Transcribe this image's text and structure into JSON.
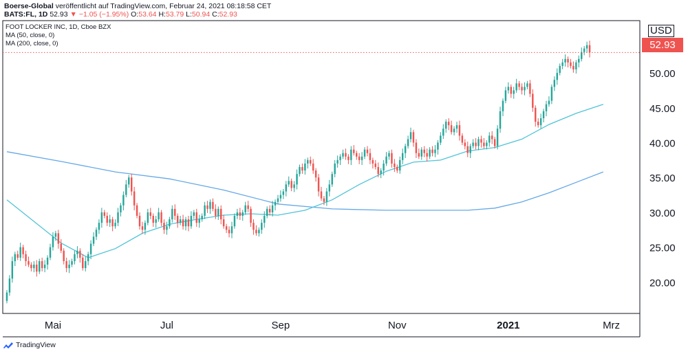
{
  "header": {
    "publisher": "Boerse-Global",
    "published_text": "veröffentlicht auf TradingView.com, Februar 24, 2021 08:18:58 CET",
    "symbol": "BATS:FL, 1D",
    "last": "52.93",
    "change": "▼ −1.05 (−1.95%)",
    "o_label": "O:",
    "o": "53.64",
    "h_label": "H:",
    "h": "53.79",
    "l_label": "L:",
    "l": "50.94",
    "c_label": "C:",
    "c": "52.93"
  },
  "legend": {
    "instrument": "FOOT LOCKER INC, 1D, Cboe BZX",
    "ma50": "MA (50, close, 0)",
    "ma200": "MA (200, close, 0)"
  },
  "price_scale": {
    "currency": "USD",
    "last_price_label": "52.93",
    "last_price": 52.93
  },
  "footer": {
    "brand": "TradingView"
  },
  "colors": {
    "up": "#26a69a",
    "down": "#ef5350",
    "ma50": "#4fc3d7",
    "ma200": "#64a8e6",
    "last_line": "#ef5350"
  },
  "chart_data": {
    "type": "candlestick",
    "title": "FOOT LOCKER INC, 1D, Cboe BZX",
    "y_ticks": [
      20,
      25,
      30,
      35,
      40,
      45,
      50
    ],
    "y_tick_labels": [
      "20.00",
      "25.00",
      "30.00",
      "35.00",
      "40.00",
      "45.00",
      "50.00"
    ],
    "ylim": [
      15.5,
      57.5
    ],
    "x_tick_labels": [
      {
        "label": "Mai",
        "index": 17,
        "bold": false
      },
      {
        "label": "Jul",
        "index": 59,
        "bold": false
      },
      {
        "label": "Sep",
        "index": 101,
        "bold": false
      },
      {
        "label": "Nov",
        "index": 144,
        "bold": false
      },
      {
        "label": "2021",
        "index": 185,
        "bold": true
      },
      {
        "label": "Mrz",
        "index": 223,
        "bold": false
      }
    ],
    "n_slots": 233,
    "closes": [
      18.5,
      20.5,
      23.0,
      24.0,
      23.5,
      25.0,
      24.0,
      23.0,
      22.5,
      22.0,
      22.5,
      21.5,
      23.0,
      22.0,
      22.5,
      23.5,
      25.0,
      26.5,
      27.0,
      25.5,
      24.5,
      23.0,
      22.0,
      22.5,
      23.0,
      24.0,
      24.5,
      23.5,
      22.0,
      23.0,
      24.0,
      25.5,
      26.5,
      27.5,
      28.5,
      30.0,
      29.5,
      28.5,
      29.0,
      28.0,
      28.5,
      30.0,
      31.0,
      32.5,
      34.0,
      35.0,
      33.0,
      31.0,
      29.5,
      28.0,
      27.5,
      28.5,
      30.0,
      29.5,
      28.5,
      29.0,
      30.0,
      28.5,
      27.5,
      28.0,
      29.0,
      30.5,
      29.5,
      28.5,
      29.0,
      28.0,
      29.0,
      28.0,
      29.5,
      30.0,
      28.5,
      29.0,
      29.5,
      31.0,
      30.5,
      31.5,
      30.5,
      29.5,
      30.5,
      29.0,
      28.0,
      27.5,
      27.0,
      28.0,
      29.5,
      30.0,
      29.5,
      30.0,
      31.0,
      30.5,
      28.5,
      27.5,
      27.0,
      27.5,
      28.5,
      29.5,
      30.5,
      30.0,
      31.0,
      31.5,
      32.0,
      32.5,
      33.0,
      34.0,
      34.5,
      33.5,
      34.0,
      35.5,
      36.5,
      36.0,
      37.0,
      37.5,
      37.0,
      36.0,
      35.0,
      33.0,
      32.0,
      31.5,
      33.0,
      34.0,
      35.5,
      37.0,
      37.5,
      38.0,
      38.5,
      38.0,
      37.5,
      39.0,
      38.5,
      38.0,
      37.5,
      38.0,
      39.0,
      38.5,
      37.5,
      37.0,
      36.5,
      35.5,
      36.0,
      37.0,
      38.0,
      38.5,
      37.0,
      36.5,
      36.0,
      37.5,
      38.5,
      39.5,
      40.5,
      41.5,
      40.0,
      38.5,
      38.0,
      39.0,
      38.5,
      38.0,
      39.0,
      38.5,
      39.0,
      40.0,
      41.0,
      42.0,
      43.0,
      42.5,
      41.5,
      42.0,
      42.5,
      41.0,
      40.0,
      39.5,
      38.5,
      39.5,
      40.0,
      39.5,
      40.5,
      40.0,
      39.5,
      40.0,
      41.0,
      40.5,
      39.5,
      42.0,
      44.5,
      46.0,
      47.5,
      48.0,
      47.0,
      47.5,
      48.5,
      48.0,
      47.5,
      48.0,
      48.5,
      47.0,
      45.0,
      43.0,
      42.5,
      43.5,
      44.5,
      45.5,
      46.0,
      48.0,
      49.0,
      50.0,
      51.0,
      51.5,
      52.0,
      51.5,
      51.0,
      50.5,
      51.5,
      52.0,
      53.0,
      53.5,
      53.98,
      52.93
    ],
    "series": [
      {
        "name": "MA (50, close, 0)"
      },
      {
        "name": "MA (200, close, 0)"
      }
    ],
    "ma50": {
      "start_index": 0,
      "points": [
        [
          0,
          31.8
        ],
        [
          20,
          25.6
        ],
        [
          30,
          23.5
        ],
        [
          40,
          24.8
        ],
        [
          50,
          27.0
        ],
        [
          60,
          28.3
        ],
        [
          70,
          29.0
        ],
        [
          80,
          29.6
        ],
        [
          90,
          29.8
        ],
        [
          100,
          29.6
        ],
        [
          110,
          30.3
        ],
        [
          120,
          31.8
        ],
        [
          130,
          34.0
        ],
        [
          140,
          35.9
        ],
        [
          150,
          37.2
        ],
        [
          160,
          37.5
        ],
        [
          170,
          38.8
        ],
        [
          180,
          39.3
        ],
        [
          190,
          40.5
        ],
        [
          200,
          42.6
        ],
        [
          210,
          44.2
        ],
        [
          220,
          45.5
        ]
      ]
    },
    "ma200": {
      "start_index": 0,
      "points": [
        [
          0,
          38.7
        ],
        [
          20,
          37.3
        ],
        [
          40,
          35.8
        ],
        [
          60,
          34.8
        ],
        [
          80,
          33.2
        ],
        [
          100,
          31.2
        ],
        [
          120,
          30.5
        ],
        [
          140,
          30.3
        ],
        [
          160,
          30.3
        ],
        [
          170,
          30.3
        ],
        [
          180,
          30.6
        ],
        [
          190,
          31.5
        ],
        [
          200,
          32.8
        ],
        [
          210,
          34.3
        ],
        [
          220,
          35.8
        ]
      ]
    }
  }
}
